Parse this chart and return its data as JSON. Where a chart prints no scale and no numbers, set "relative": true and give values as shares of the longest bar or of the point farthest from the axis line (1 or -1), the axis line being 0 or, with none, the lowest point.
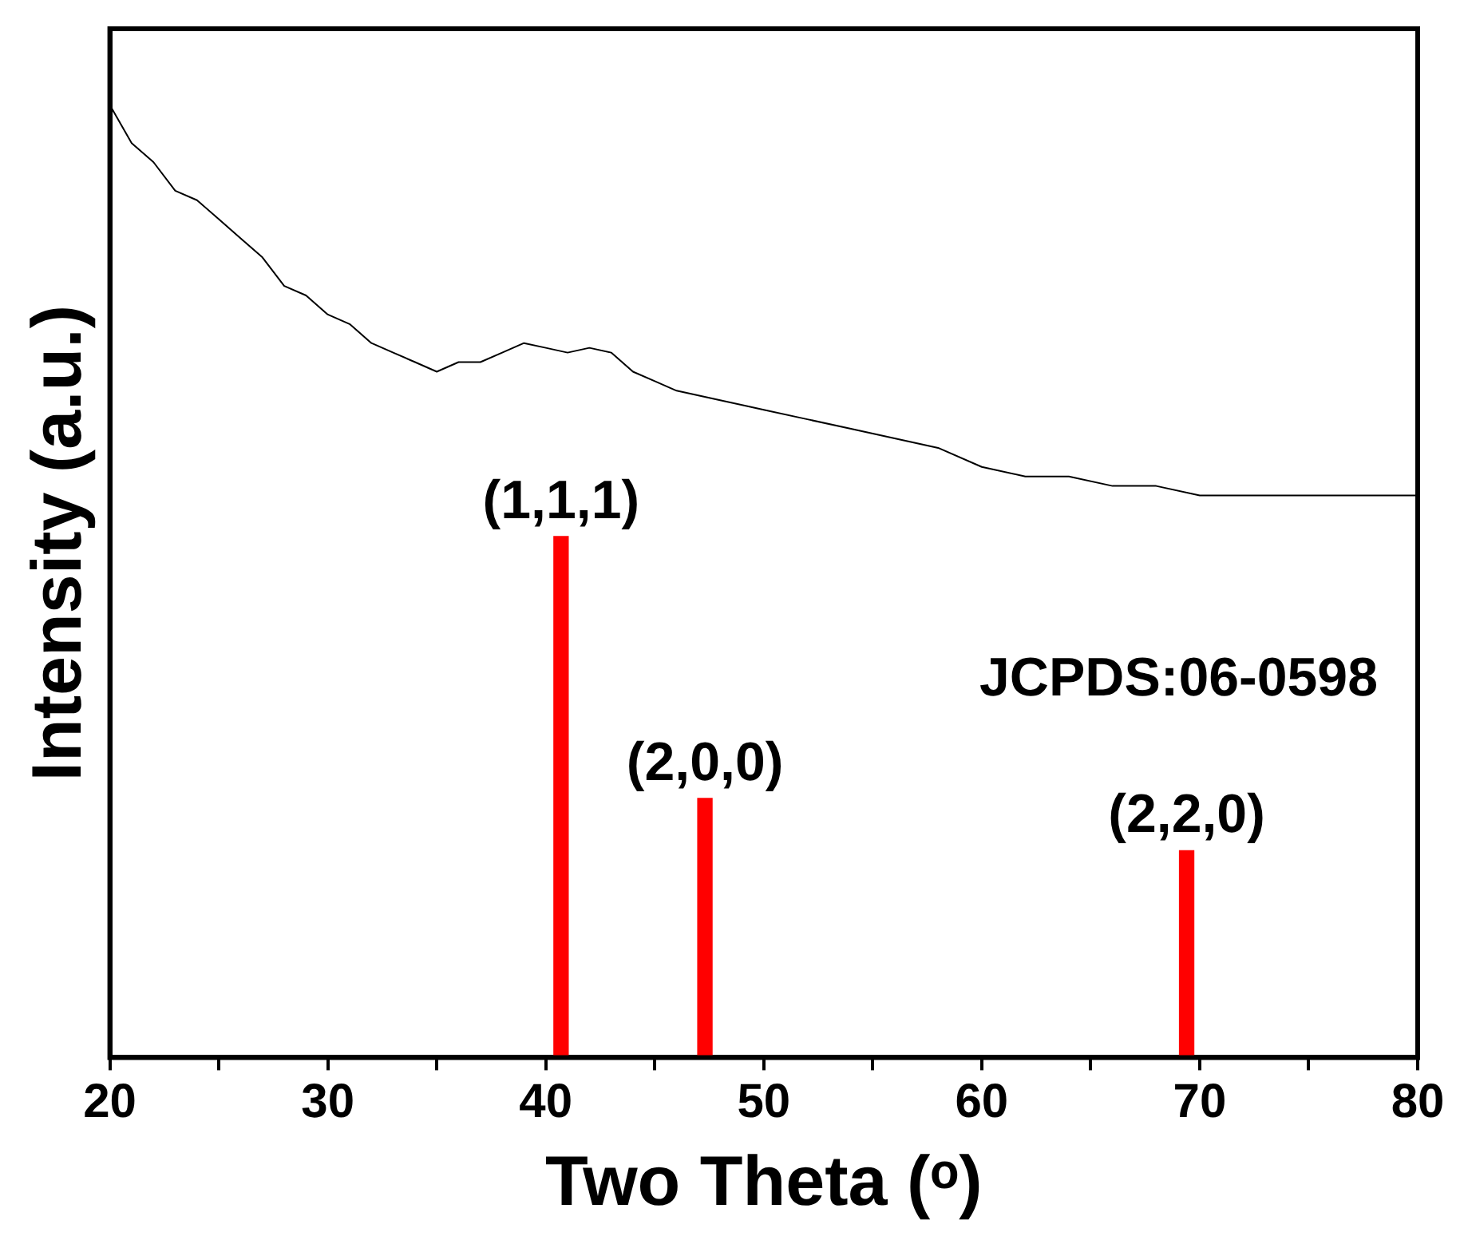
{
  "chart_data": {
    "type": "line",
    "xlabel": "Two Theta (ᵒ)",
    "ylabel": "Intensity (a.u.)",
    "relative": true,
    "xlim": [
      20,
      80
    ],
    "xticks": [
      20,
      {
        "value": 25,
        "label": null
      },
      30,
      {
        "value": 35,
        "label": null
      },
      40,
      {
        "value": 45,
        "label": null
      },
      50,
      {
        "value": 55,
        "label": null
      },
      60,
      {
        "value": 65,
        "label": null
      },
      70,
      {
        "value": 75,
        "label": null
      },
      80
    ],
    "grid": false,
    "legend": false,
    "marker": "none",
    "series": [
      {
        "color": "#000000",
        "x": [
          20,
          21,
          22,
          23,
          24,
          25,
          26,
          27,
          28,
          29,
          30,
          31,
          32,
          33,
          34,
          35,
          36,
          37,
          38,
          39,
          40,
          41,
          42,
          43,
          44,
          45,
          46,
          48,
          50,
          52,
          54,
          56,
          58,
          60,
          62,
          64,
          66,
          68,
          70,
          72,
          74,
          76,
          78,
          80
        ],
        "values": [
          1,
          0.96,
          0.94,
          0.91,
          0.9,
          0.88,
          0.86,
          0.84,
          0.81,
          0.8,
          0.78,
          0.77,
          0.75,
          0.74,
          0.73,
          0.72,
          0.73,
          0.73,
          0.74,
          0.75,
          0.745,
          0.74,
          0.745,
          0.74,
          0.72,
          0.71,
          0.7,
          0.69,
          0.68,
          0.67,
          0.66,
          0.65,
          0.64,
          0.62,
          0.61,
          0.61,
          0.6,
          0.6,
          0.59,
          0.59,
          0.59,
          0.59,
          0.59,
          0.59
        ]
      },
      {
        "type": "bar",
        "color": "#ff0000",
        "x": [
          40.7,
          47.3,
          69.4
        ],
        "values": [
          0.547,
          0.272,
          0.217
        ]
      }
    ],
    "annotations": [
      {
        "text": "(1,1,1)",
        "x": 40.7,
        "y": 0.547
      },
      {
        "text": "(2,0,0)",
        "x": 47.3,
        "y": 0.272
      },
      {
        "text": "(2,2,0)",
        "x": 69.4,
        "y": 0.217
      },
      "JCPDS:06-0598"
    ]
  }
}
